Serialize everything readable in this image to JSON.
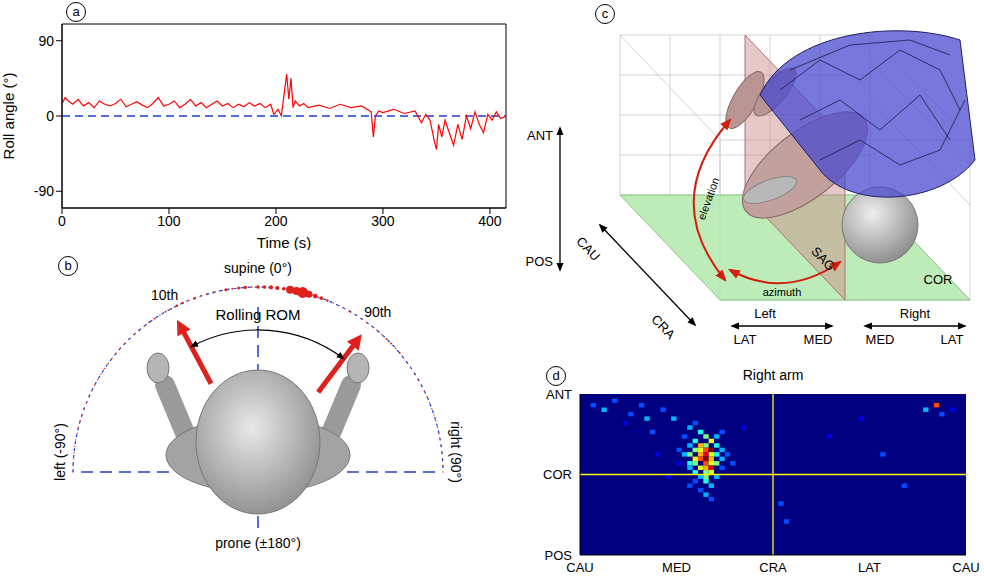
{
  "chart_data": [
    {
      "panel": "a",
      "type": "line",
      "x_label": "Time (s)",
      "y_label": "Roll angle (°)",
      "x": [
        0,
        3,
        6,
        10,
        15,
        20,
        25,
        30,
        35,
        40,
        45,
        50,
        55,
        60,
        65,
        70,
        75,
        80,
        85,
        90,
        95,
        100,
        105,
        110,
        115,
        120,
        125,
        130,
        135,
        140,
        145,
        150,
        155,
        160,
        165,
        170,
        175,
        180,
        185,
        190,
        195,
        198,
        202,
        205,
        208,
        210,
        212,
        214,
        216,
        218,
        222,
        226,
        230,
        240,
        250,
        260,
        270,
        280,
        285,
        289,
        291,
        293,
        296,
        300,
        310,
        320,
        330,
        336,
        340,
        344,
        348,
        350,
        352,
        355,
        358,
        362,
        366,
        370,
        374,
        378,
        382,
        386,
        390,
        394,
        398,
        402,
        406,
        410,
        415
      ],
      "values": [
        15,
        22,
        18,
        14,
        20,
        12,
        16,
        10,
        18,
        14,
        12,
        15,
        20,
        11,
        14,
        17,
        13,
        10,
        15,
        22,
        12,
        14,
        18,
        10,
        14,
        20,
        12,
        16,
        10,
        14,
        18,
        12,
        15,
        10,
        14,
        11,
        16,
        12,
        15,
        10,
        14,
        2,
        8,
        0,
        30,
        50,
        20,
        45,
        10,
        18,
        12,
        15,
        10,
        13,
        9,
        14,
        10,
        12,
        8,
        5,
        -25,
        0,
        6,
        4,
        8,
        3,
        6,
        -8,
        2,
        -5,
        -30,
        -40,
        -10,
        -25,
        -5,
        -20,
        -35,
        -10,
        -28,
        0,
        -15,
        5,
        -10,
        -20,
        2,
        -5,
        5,
        -3,
        0
      ],
      "color": "#ff0000",
      "xlim": [
        0,
        415
      ],
      "xticks": [
        0,
        100,
        200,
        300,
        400
      ],
      "ylim": [
        -110,
        110
      ],
      "yticks": [
        -90,
        0,
        90
      ],
      "reference_lines": [
        {
          "y": 0,
          "color": "#1f3fd0",
          "line_style": "dashed"
        }
      ]
    },
    {
      "panel": "d",
      "type": "heatmap",
      "title": "Right arm",
      "xlim": [
        0,
        360
      ],
      "xticks": [
        {
          "value": 0,
          "label": "CAU"
        },
        {
          "value": 90,
          "label": "MED"
        },
        {
          "value": 180,
          "label": "CRA"
        },
        {
          "value": 270,
          "label": "LAT"
        },
        {
          "value": 360,
          "label": "CAU"
        }
      ],
      "ylim": [
        -90,
        90
      ],
      "yticks": [
        {
          "value": -90,
          "label": "POS"
        },
        {
          "value": 0,
          "label": "COR"
        },
        {
          "value": 90,
          "label": "ANT"
        }
      ],
      "cell_size": [
        5,
        5
      ],
      "color_range": [
        0,
        10
      ],
      "cells": [
        [
          100,
          50,
          3
        ],
        [
          105,
          55,
          2
        ],
        [
          110,
          45,
          4
        ],
        [
          115,
          40,
          5
        ],
        [
          95,
          40,
          2
        ],
        [
          120,
          35,
          6
        ],
        [
          105,
          35,
          4
        ],
        [
          110,
          30,
          7
        ],
        [
          115,
          30,
          5
        ],
        [
          100,
          30,
          3
        ],
        [
          125,
          30,
          4
        ],
        [
          110,
          25,
          6
        ],
        [
          115,
          25,
          8
        ],
        [
          120,
          25,
          10
        ],
        [
          105,
          25,
          5
        ],
        [
          130,
          25,
          3
        ],
        [
          95,
          20,
          3
        ],
        [
          100,
          20,
          5
        ],
        [
          110,
          20,
          7
        ],
        [
          115,
          20,
          9
        ],
        [
          120,
          20,
          6
        ],
        [
          125,
          20,
          4
        ],
        [
          105,
          15,
          6
        ],
        [
          110,
          15,
          8
        ],
        [
          115,
          15,
          10
        ],
        [
          120,
          15,
          7
        ],
        [
          130,
          15,
          3
        ],
        [
          100,
          10,
          4
        ],
        [
          105,
          10,
          5
        ],
        [
          115,
          10,
          8
        ],
        [
          120,
          10,
          6
        ],
        [
          125,
          10,
          5
        ],
        [
          110,
          5,
          6
        ],
        [
          115,
          5,
          7
        ],
        [
          120,
          5,
          9
        ],
        [
          100,
          5,
          3
        ],
        [
          130,
          5,
          2
        ],
        [
          105,
          0,
          4
        ],
        [
          115,
          0,
          5
        ],
        [
          120,
          0,
          6
        ],
        [
          110,
          -5,
          3
        ],
        [
          115,
          -5,
          5
        ],
        [
          125,
          -5,
          3
        ],
        [
          105,
          -10,
          2
        ],
        [
          115,
          -10,
          4
        ],
        [
          120,
          -15,
          3
        ],
        [
          110,
          -20,
          2
        ],
        [
          115,
          -25,
          3
        ],
        [
          120,
          -30,
          2
        ],
        [
          100,
          -15,
          2
        ],
        [
          135,
          20,
          2
        ],
        [
          140,
          10,
          2
        ],
        [
          90,
          25,
          2
        ],
        [
          90,
          10,
          1
        ],
        [
          125,
          40,
          3
        ],
        [
          130,
          45,
          2
        ],
        [
          10,
          75,
          2
        ],
        [
          20,
          70,
          3
        ],
        [
          30,
          80,
          2
        ],
        [
          45,
          65,
          2
        ],
        [
          55,
          75,
          2
        ],
        [
          60,
          60,
          3
        ],
        [
          75,
          70,
          2
        ],
        [
          85,
          60,
          3
        ],
        [
          40,
          55,
          1
        ],
        [
          65,
          45,
          2
        ],
        [
          150,
          50,
          1
        ],
        [
          185,
          -35,
          2
        ],
        [
          190,
          -55,
          2
        ],
        [
          230,
          40,
          1
        ],
        [
          280,
          20,
          2
        ],
        [
          300,
          -15,
          2
        ],
        [
          320,
          70,
          3
        ],
        [
          330,
          75,
          8
        ],
        [
          335,
          65,
          2
        ],
        [
          345,
          70,
          1
        ],
        [
          260,
          60,
          1
        ],
        [
          70,
          20,
          1
        ],
        [
          80,
          -5,
          1
        ]
      ],
      "reference_lines": [
        {
          "x": 180,
          "color": "#ffff00",
          "line_style": "solid"
        },
        {
          "y": 0,
          "color": "#ffff00",
          "line_style": "solid"
        }
      ]
    }
  ],
  "diagrams": {
    "b": {
      "panel": "b",
      "directions": [
        {
          "label": "supine (0°)",
          "angle": 0
        },
        {
          "label": "right (90°)",
          "angle": 90
        },
        {
          "label": "prone (±180°)",
          "angle": 180
        },
        {
          "label": "left (-90°)",
          "angle": -90
        }
      ],
      "percentiles": [
        {
          "label": "10th",
          "angle": -28
        },
        {
          "label": "90th",
          "angle": 37
        }
      ],
      "range_label": "Rolling ROM"
    },
    "c": {
      "panel": "c",
      "labels": {
        "ant": "ANT",
        "pos": "POS",
        "cau": "CAU",
        "cra": "CRA",
        "left": "Left",
        "right": "Right",
        "lat": "LAT",
        "med": "MED",
        "sag": "SAG",
        "cor": "COR",
        "elevation": "elevation",
        "azimuth": "azimuth"
      }
    }
  }
}
